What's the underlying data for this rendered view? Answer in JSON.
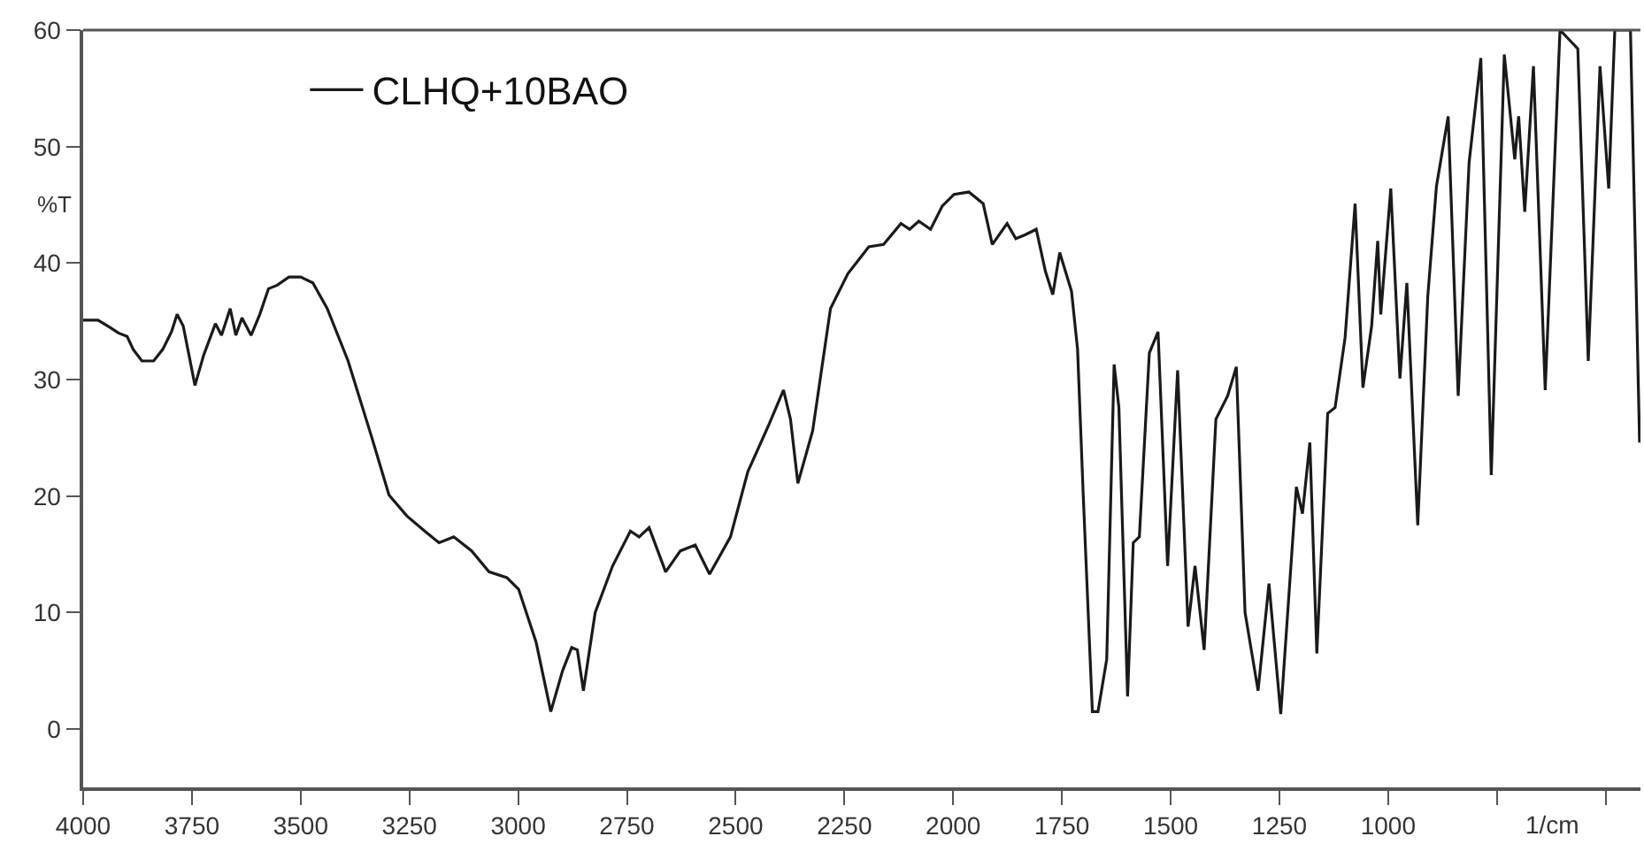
{
  "chart_data": {
    "type": "line",
    "xlabel": "1/cm",
    "ylabel": "%T",
    "legend": "top left",
    "marker": "none",
    "line_style": "solid",
    "xlim": [
      4000,
      420
    ],
    "ylim": [
      -5,
      60
    ],
    "xticks": [
      4000,
      3750,
      3500,
      3250,
      3000,
      2750,
      2500,
      2250,
      2000,
      1750,
      1500,
      1250,
      1000,
      {
        "value": 750,
        "label": null
      },
      {
        "value": 500,
        "label": null
      }
    ],
    "yticks": [
      0,
      10,
      20,
      30,
      40,
      50,
      60
    ],
    "series": [
      {
        "name": "CLHQ+10BAO",
        "color": "#1a1a1a",
        "x": [
          4000,
          3966,
          3939,
          3919,
          3899,
          3885,
          3865,
          3838,
          3817,
          3797,
          3784,
          3770,
          3743,
          3723,
          3696,
          3682,
          3662,
          3649,
          3635,
          3614,
          3594,
          3574,
          3554,
          3527,
          3500,
          3472,
          3439,
          3391,
          3337,
          3297,
          3256,
          3215,
          3182,
          3148,
          3107,
          3067,
          3026,
          2999,
          2959,
          2925,
          2898,
          2877,
          2864,
          2850,
          2823,
          2783,
          2742,
          2722,
          2699,
          2661,
          2627,
          2593,
          2560,
          2512,
          2472,
          2424,
          2390,
          2374,
          2357,
          2323,
          2282,
          2242,
          2194,
          2160,
          2120,
          2100,
          2079,
          2052,
          2025,
          1998,
          1964,
          1931,
          1910,
          1876,
          1856,
          1836,
          1809,
          1788,
          1771,
          1755,
          1728,
          1714,
          1701,
          1680,
          1667,
          1647,
          1630,
          1619,
          1599,
          1586,
          1572,
          1549,
          1529,
          1507,
          1484,
          1460,
          1444,
          1423,
          1396,
          1369,
          1349,
          1329,
          1299,
          1274,
          1247,
          1211,
          1197,
          1180,
          1164,
          1139,
          1122,
          1099,
          1076,
          1058,
          1038,
          1024,
          1017,
          994,
          973,
          957,
          932,
          909,
          889,
          862,
          839,
          814,
          787,
          763,
          733,
          709,
          700,
          686,
          666,
          639,
          605,
          564,
          540,
          513,
          493,
          479,
          443,
          422
        ],
        "values": [
          35.1,
          35.1,
          34.5,
          34.0,
          33.7,
          32.6,
          31.6,
          31.6,
          32.6,
          34.1,
          35.6,
          34.6,
          29.5,
          32.1,
          34.8,
          33.8,
          36.1,
          33.8,
          35.3,
          33.8,
          35.6,
          37.8,
          38.1,
          38.8,
          38.8,
          38.3,
          36.1,
          31.6,
          25.1,
          20.1,
          18.3,
          17.0,
          16.0,
          16.5,
          15.3,
          13.5,
          13.0,
          12.0,
          7.5,
          1.5,
          5.0,
          7.0,
          6.8,
          3.3,
          10.0,
          14.0,
          17.0,
          16.5,
          17.3,
          13.5,
          15.3,
          15.8,
          13.3,
          16.5,
          22.1,
          26.1,
          29.1,
          26.6,
          21.1,
          25.6,
          36.1,
          39.1,
          41.4,
          41.6,
          43.4,
          42.9,
          43.6,
          42.9,
          44.9,
          45.9,
          46.1,
          45.1,
          41.6,
          43.4,
          42.1,
          42.4,
          42.9,
          39.3,
          37.3,
          40.9,
          37.6,
          32.6,
          20.1,
          1.5,
          1.5,
          6.0,
          31.3,
          27.6,
          2.8,
          16.0,
          16.5,
          32.3,
          34.1,
          14.0,
          30.8,
          8.8,
          14.0,
          6.8,
          26.6,
          28.6,
          31.1,
          10.0,
          3.3,
          12.5,
          1.3,
          20.8,
          18.5,
          24.6,
          6.5,
          27.1,
          27.6,
          33.6,
          45.1,
          29.3,
          34.6,
          41.9,
          35.6,
          46.4,
          30.1,
          38.3,
          17.5,
          37.1,
          46.6,
          52.6,
          28.6,
          48.6,
          57.6,
          21.8,
          57.9,
          48.9,
          52.6,
          44.4,
          56.9,
          29.1,
          60.0,
          58.4,
          31.6,
          56.9,
          46.4,
          60.0,
          60.0,
          24.6
        ]
      }
    ]
  }
}
